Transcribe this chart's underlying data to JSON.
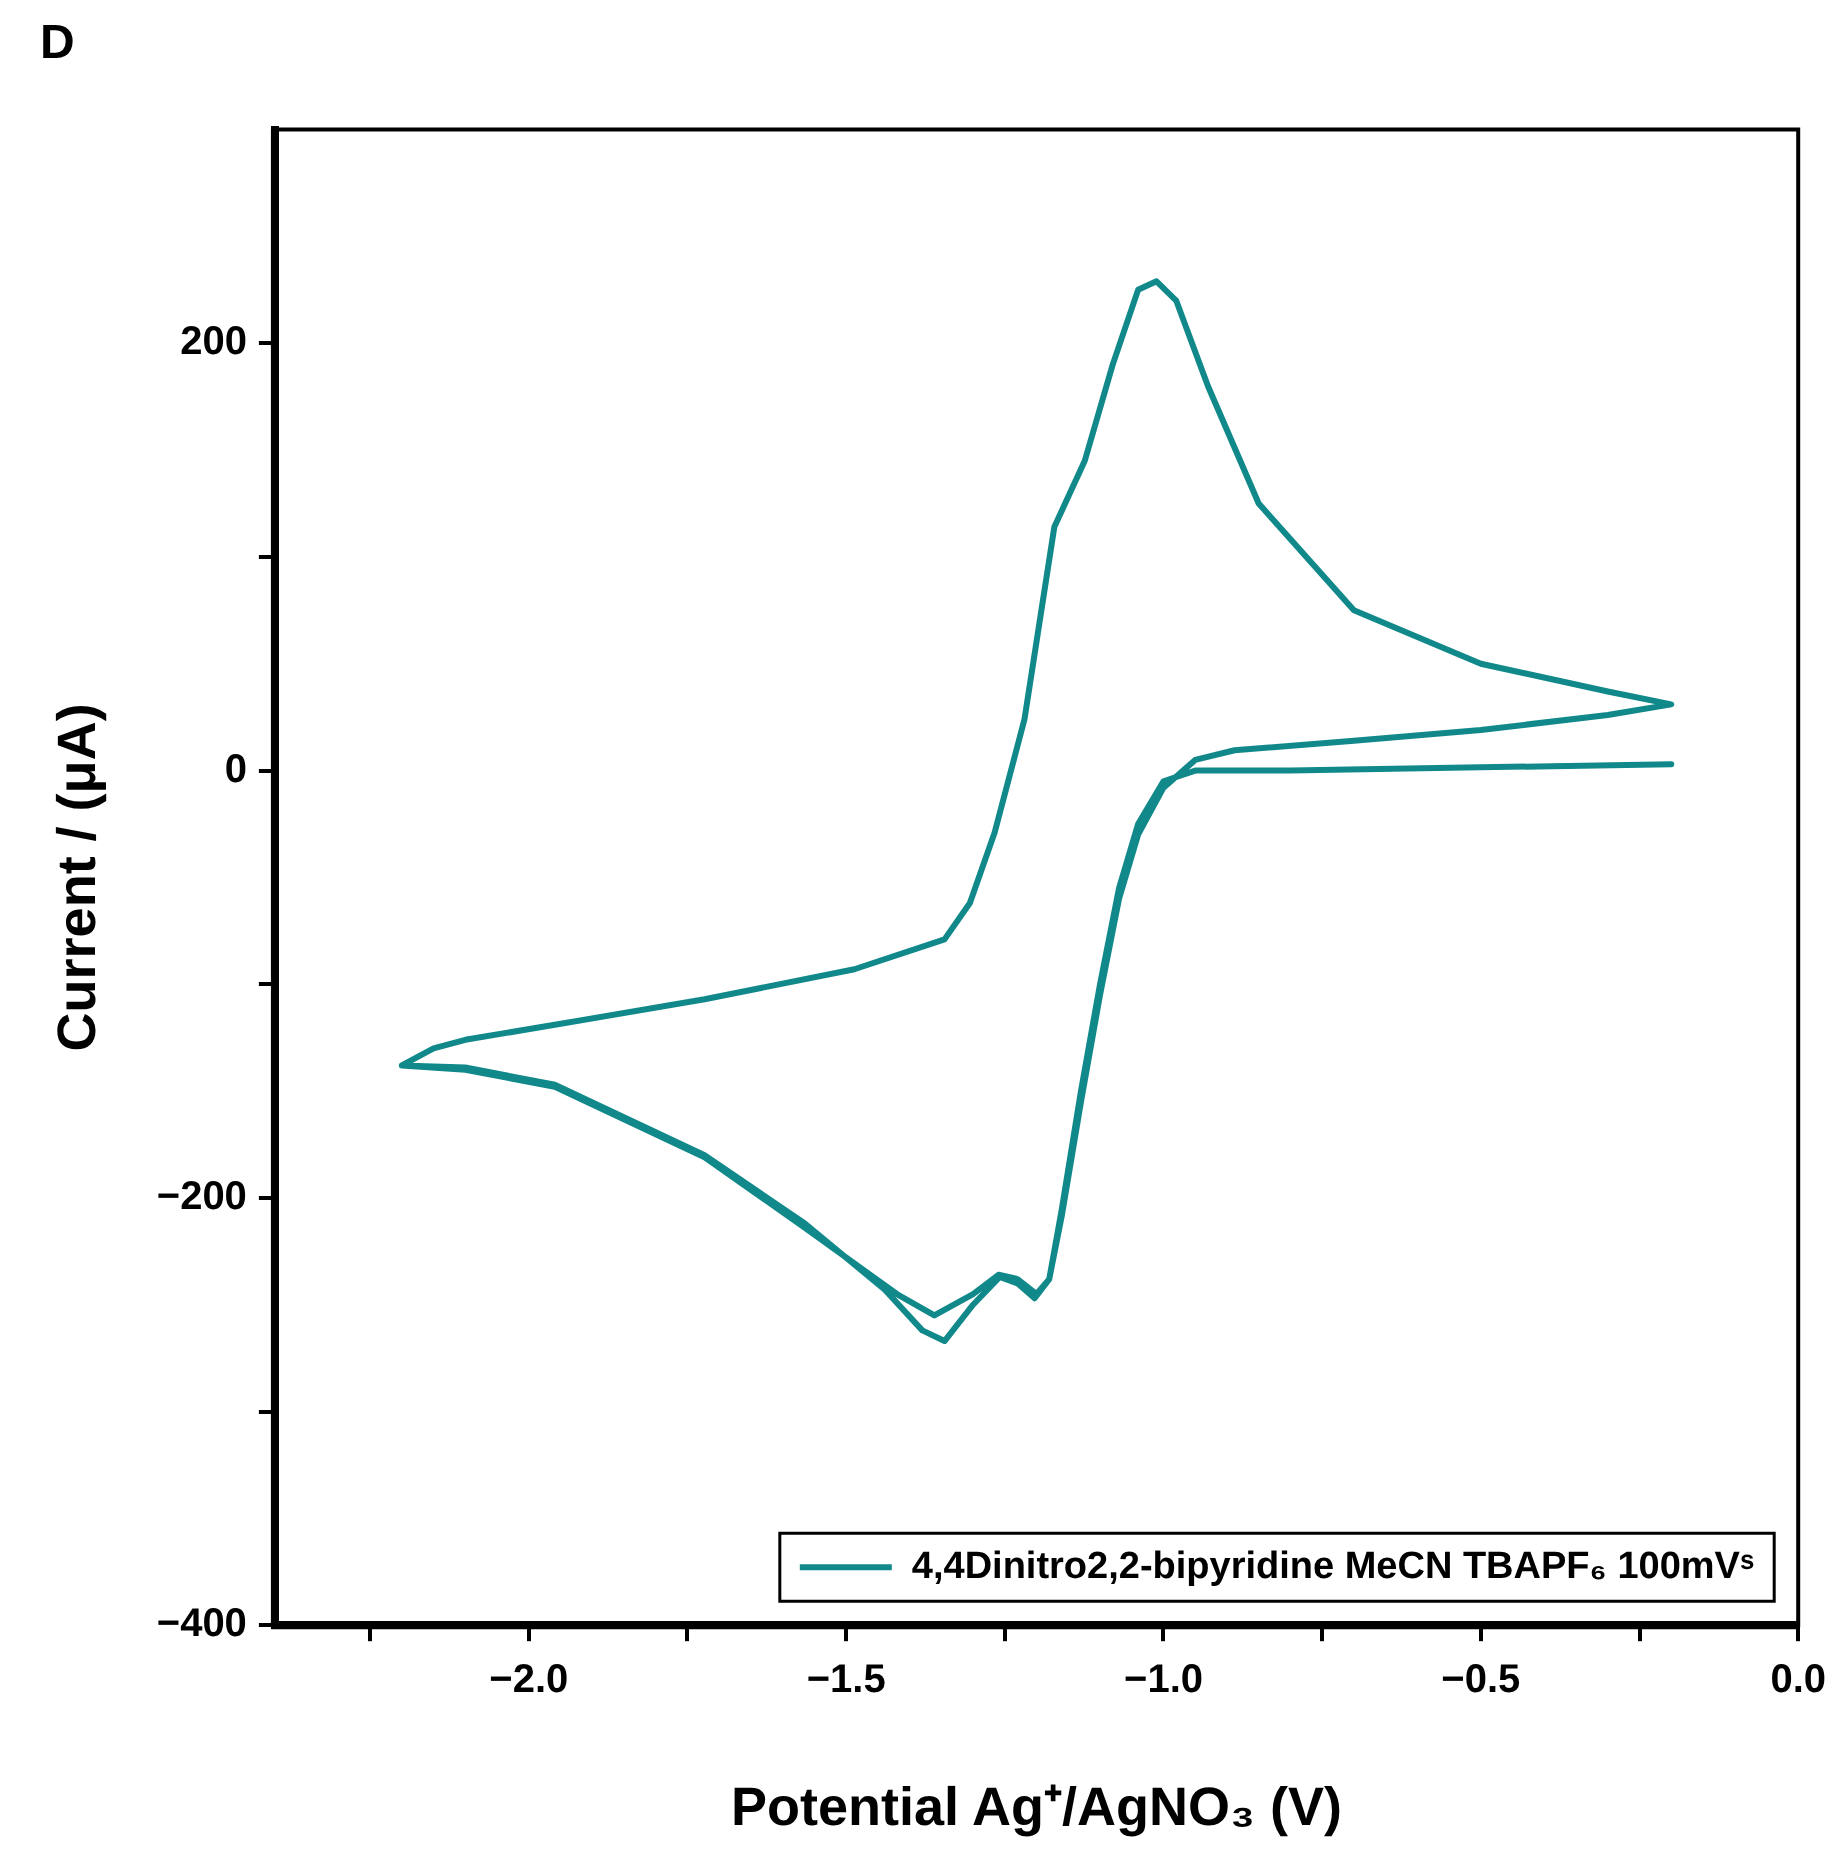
{
  "chart_data": {
    "type": "line",
    "title": "D",
    "xlabel": "Potential Ag⁺/AgNO₃ (V)",
    "ylabel": "Current / (μA)",
    "xlim": [
      -2.4,
      0
    ],
    "ylim": [
      -400,
      300
    ],
    "xticks": [
      {
        "value": -2.25,
        "label": null
      },
      {
        "value": -2.0,
        "label": "−2.0"
      },
      {
        "value": -1.75,
        "label": null
      },
      {
        "value": -1.5,
        "label": "−1.5"
      },
      {
        "value": -1.25,
        "label": null
      },
      {
        "value": -1.0,
        "label": "−1.0"
      },
      {
        "value": -0.75,
        "label": null
      },
      {
        "value": -0.5,
        "label": "−0.5"
      },
      {
        "value": -0.25,
        "label": null
      },
      {
        "value": 0,
        "label": "0.0"
      }
    ],
    "yticks": [
      {
        "value": -400,
        "label": "−400"
      },
      {
        "value": -300,
        "label": null
      },
      {
        "value": -200,
        "label": "−200"
      },
      {
        "value": -100,
        "label": null
      },
      0,
      {
        "value": 100,
        "label": null
      },
      200
    ],
    "grid": false,
    "legend": "bottom right",
    "marker": "none",
    "line_style": "solid",
    "series": [
      {
        "name": "4,4Dinitro2,2-bipyridine MeCN TBAPF₆ 100mVˢ",
        "color": "#11898a",
        "x": [
          -0.2,
          -0.5,
          -0.8,
          -0.95,
          -1.0,
          -1.04,
          -1.07,
          -1.1,
          -1.13,
          -1.16,
          -1.18,
          -1.203,
          -1.23,
          -1.258,
          -1.3,
          -1.345,
          -1.38,
          -1.439,
          -1.565,
          -1.723,
          -1.959,
          -2.1,
          -2.2,
          -2.15,
          -2.1,
          -1.959,
          -1.723,
          -1.487,
          -1.345,
          -1.305,
          -1.266,
          -1.219,
          -1.172,
          -1.124,
          -1.08,
          -1.04,
          -1.011,
          -0.98,
          -0.93,
          -0.85,
          -0.7,
          -0.5,
          -0.3,
          -0.2,
          -0.3,
          -0.5,
          -0.7,
          -0.888,
          -0.95,
          -1.0,
          -1.04,
          -1.07,
          -1.1,
          -1.13,
          -1.16,
          -1.18,
          -1.2,
          -1.23,
          -1.26,
          -1.3,
          -1.361,
          -1.42,
          -1.565,
          -1.723,
          -1.959,
          -2.1,
          -2.2
        ],
        "values": [
          3,
          1.5,
          0,
          0,
          -5,
          -25,
          -55,
          -100,
          -150,
          -205,
          -238,
          -247,
          -240,
          -237,
          -250,
          -267,
          -262,
          -243,
          -212,
          -180,
          -147,
          -139,
          -138,
          -130,
          -126,
          -119,
          -107,
          -93,
          -79,
          -62,
          -29,
          24,
          114,
          145,
          190,
          225,
          229,
          220,
          180,
          125,
          75,
          50,
          37,
          31,
          26,
          19,
          14,
          9.5,
          5,
          -8,
          -30,
          -60,
          -105,
          -155,
          -208,
          -238,
          -245,
          -238,
          -236,
          -245,
          -255,
          -245,
          -214,
          -181,
          -148,
          -140,
          -138
        ]
      }
    ]
  }
}
